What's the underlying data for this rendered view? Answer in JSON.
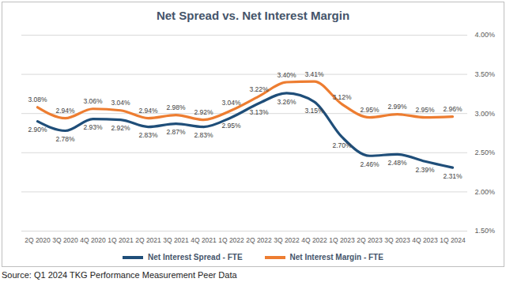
{
  "chart_data": {
    "type": "line",
    "title": "Net Spread vs. Net Interest Margin",
    "caption": "Source: Q1 2024 TKG Performance Measurement Peer Data",
    "categories": [
      "2Q 2020",
      "3Q 2020",
      "4Q 2020",
      "1Q 2021",
      "2Q 2021",
      "3Q 2021",
      "4Q 2021",
      "1Q 2022",
      "2Q 2022",
      "3Q 2022",
      "4Q 2022",
      "1Q 2023",
      "2Q 2023",
      "3Q 2023",
      "4Q 2023",
      "1Q 2024"
    ],
    "series": [
      {
        "name": "Net Interest Spread - FTE",
        "color": "#1f4e79",
        "values": [
          2.9,
          2.78,
          2.93,
          2.92,
          2.83,
          2.87,
          2.83,
          2.95,
          3.13,
          3.26,
          3.15,
          2.7,
          2.46,
          2.48,
          2.39,
          2.31
        ],
        "value_labels": [
          "2.90%",
          "2.78%",
          "2.93%",
          "2.92%",
          "2.83%",
          "2.87%",
          "2.83%",
          "2.95%",
          "3.13%",
          "3.26%",
          "3.15%",
          "2.70%",
          "2.46%",
          "2.48%",
          "2.39%",
          "2.31%"
        ]
      },
      {
        "name": "Net Interest Margin - FTE",
        "color": "#ed7d31",
        "values": [
          3.08,
          2.94,
          3.06,
          3.04,
          2.94,
          2.98,
          2.92,
          3.04,
          3.22,
          3.4,
          3.41,
          3.12,
          2.95,
          2.99,
          2.95,
          2.96
        ],
        "value_labels": [
          "3.08%",
          "2.94%",
          "3.06%",
          "3.04%",
          "2.94%",
          "2.98%",
          "2.92%",
          "3.04%",
          "3.22%",
          "3.40%",
          "3.41%",
          "3.12%",
          "2.95%",
          "2.99%",
          "2.95%",
          "2.96%"
        ]
      }
    ],
    "ylim": [
      1.5,
      4.0
    ],
    "yticks": [
      {
        "value": 1.5,
        "label": "1.50%"
      },
      {
        "value": 2.0,
        "label": "2.00%"
      },
      {
        "value": 2.5,
        "label": "2.50%"
      },
      {
        "value": 3.0,
        "label": "3.00%"
      },
      {
        "value": 3.5,
        "label": "3.50%"
      },
      {
        "value": 4.0,
        "label": "4.00%"
      }
    ],
    "grid": true,
    "data_labels": true,
    "legend": "bottom"
  }
}
